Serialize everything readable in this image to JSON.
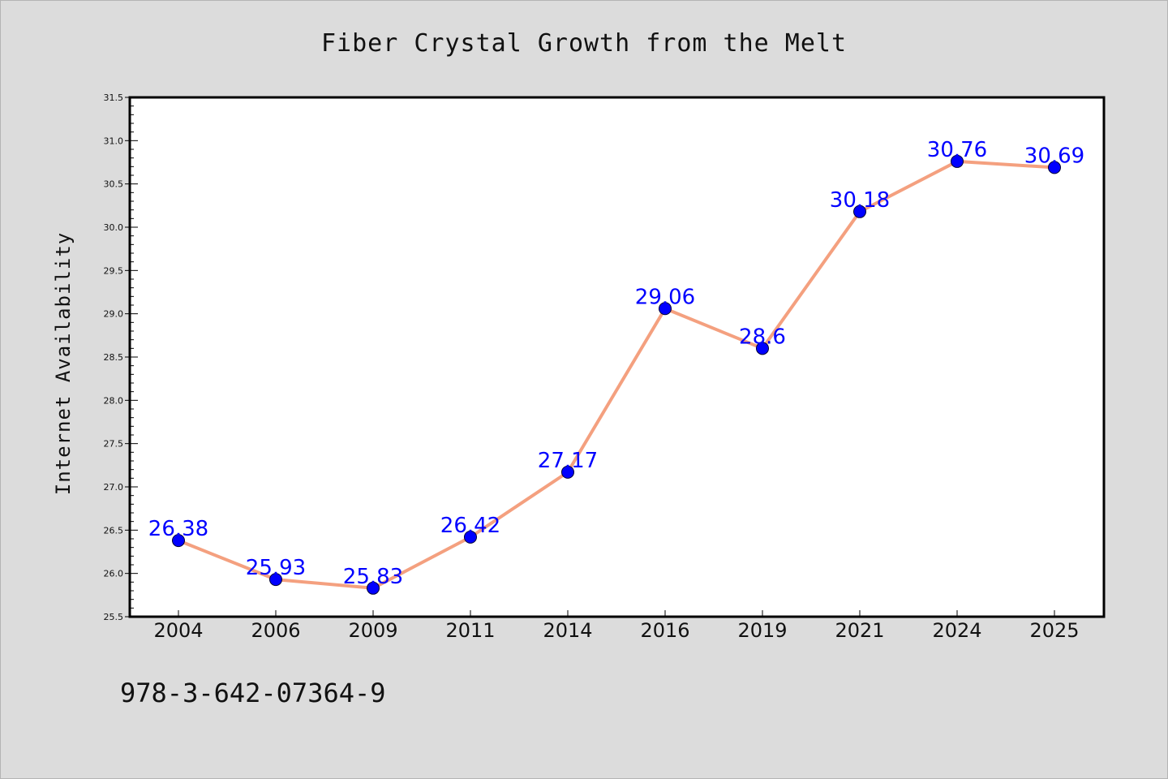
{
  "chart_data": {
    "type": "line",
    "title": "Fiber Crystal Growth from the Melt",
    "xlabel": "",
    "ylabel": "Internet Availability",
    "categories": [
      "2004",
      "2006",
      "2009",
      "2011",
      "2014",
      "2016",
      "2019",
      "2021",
      "2024",
      "2025"
    ],
    "series": [
      {
        "values": [
          26.38,
          25.93,
          25.83,
          26.42,
          27.17,
          29.06,
          28.6,
          30.18,
          30.76,
          30.69
        ],
        "data_labels": [
          "26.38",
          "25.93",
          "25.83",
          "26.42",
          "27.17",
          "29.06",
          "28.6",
          "30.18",
          "30.76",
          "30.69"
        ]
      }
    ],
    "ylim": [
      25.5,
      31.5
    ],
    "yticks": [
      "25.5",
      "26.0",
      "26.5",
      "27.0",
      "27.5",
      "28.0",
      "28.5",
      "29.0",
      "29.5",
      "30.0",
      "30.5",
      "31.0",
      "31.5"
    ],
    "grid": false,
    "colors": {
      "line": "#f4a07f",
      "marker": "#0000ff",
      "data_label": "#0000ff",
      "plot_background": "#ffffff",
      "figure_background": "#dcdcdc"
    }
  },
  "footer_text": "978-3-642-07364-9"
}
